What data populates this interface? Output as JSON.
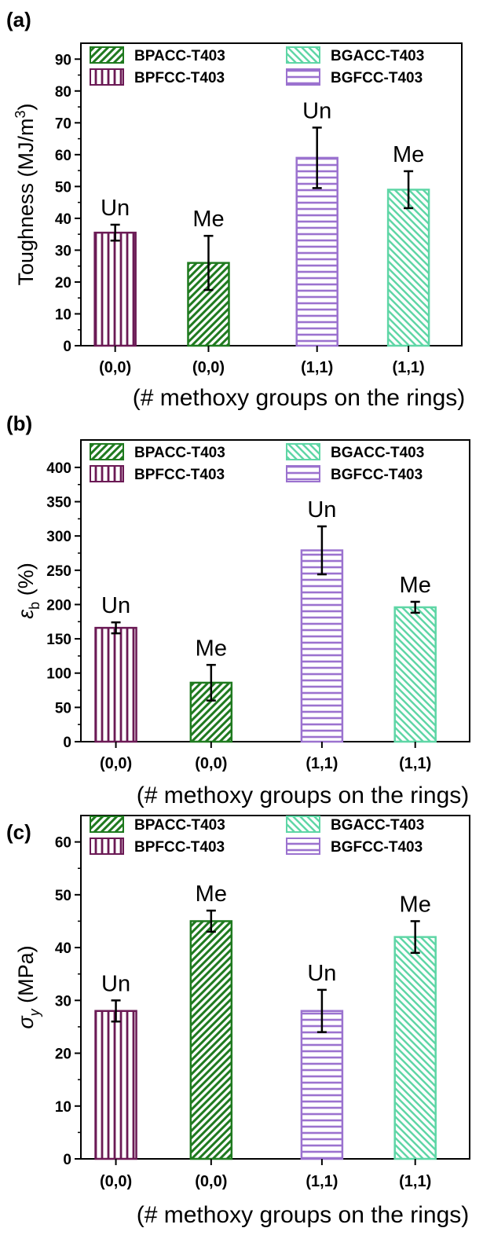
{
  "colors": {
    "BPACC-T403": "#1f7a1f",
    "BPFCC-T403": "#6b1a55",
    "BGACC-T403": "#5fd6a6",
    "BGFCC-T403": "#9b72cf"
  },
  "legend": {
    "entries": [
      "BPACC-T403",
      "BGACC-T403",
      "BPFCC-T403",
      "BGFCC-T403"
    ],
    "placement": "top"
  },
  "chart_data": [
    {
      "type": "bar",
      "panel_label": "(a)",
      "ylabel_main": "Toughness (MJ/m",
      "ylabel_sup": "3",
      "ylabel_close": ")",
      "xlabel": "(# methoxy groups on the rings)",
      "categories": [
        "(0,0)",
        "(0,0)",
        "(1,1)",
        "(1,1)"
      ],
      "bar_series": [
        "BPFCC-T403",
        "BPACC-T403",
        "BGFCC-T403",
        "BGACC-T403"
      ],
      "values": [
        35.5,
        26,
        59,
        49
      ],
      "errors": [
        2.5,
        8.5,
        9.5,
        5.8
      ],
      "annotations": [
        "Un",
        "Me",
        "Un",
        "Me"
      ],
      "ylim": [
        0,
        95
      ],
      "yticks": [
        0,
        10,
        20,
        30,
        40,
        50,
        60,
        70,
        80,
        90
      ],
      "ytick_labels": [
        "0",
        "10",
        "20",
        "30",
        "40",
        "50",
        "60",
        "70",
        "80",
        "90"
      ]
    },
    {
      "type": "bar",
      "panel_label": "(b)",
      "ylabel_main": "ε",
      "ylabel_sub": "b",
      "ylabel_rest": " (%)",
      "xlabel": "(# methoxy groups on the rings)",
      "categories": [
        "(0,0)",
        "(0,0)",
        "(1,1)",
        "(1,1)"
      ],
      "bar_series": [
        "BPFCC-T403",
        "BPACC-T403",
        "BGFCC-T403",
        "BGACC-T403"
      ],
      "values": [
        166,
        86,
        279,
        196
      ],
      "errors": [
        8,
        26,
        35,
        8
      ],
      "annotations": [
        "Un",
        "Me",
        "Un",
        "Me"
      ],
      "ylim": [
        0,
        440
      ],
      "yticks": [
        0,
        50,
        100,
        150,
        200,
        250,
        300,
        350,
        400
      ],
      "ytick_labels": [
        "0",
        "50",
        "100",
        "150",
        "200",
        "250",
        "300",
        "350",
        "400"
      ]
    },
    {
      "type": "bar",
      "panel_label": "(c)",
      "ylabel_main": "σ",
      "ylabel_sub": "y",
      "ylabel_rest": " (MPa)",
      "xlabel": "(# methoxy groups on the rings)",
      "categories": [
        "(0,0)",
        "(0,0)",
        "(1,1)",
        "(1,1)"
      ],
      "bar_series": [
        "BPFCC-T403",
        "BPACC-T403",
        "BGFCC-T403",
        "BGACC-T403"
      ],
      "values": [
        28,
        45,
        28,
        42
      ],
      "errors": [
        2,
        2,
        4,
        3
      ],
      "annotations": [
        "Un",
        "Me",
        "Un",
        "Me"
      ],
      "ylim": [
        0,
        65
      ],
      "yticks": [
        0,
        10,
        20,
        30,
        40,
        50,
        60
      ],
      "ytick_labels": [
        "0",
        "10",
        "20",
        "30",
        "40",
        "50",
        "60"
      ]
    }
  ]
}
